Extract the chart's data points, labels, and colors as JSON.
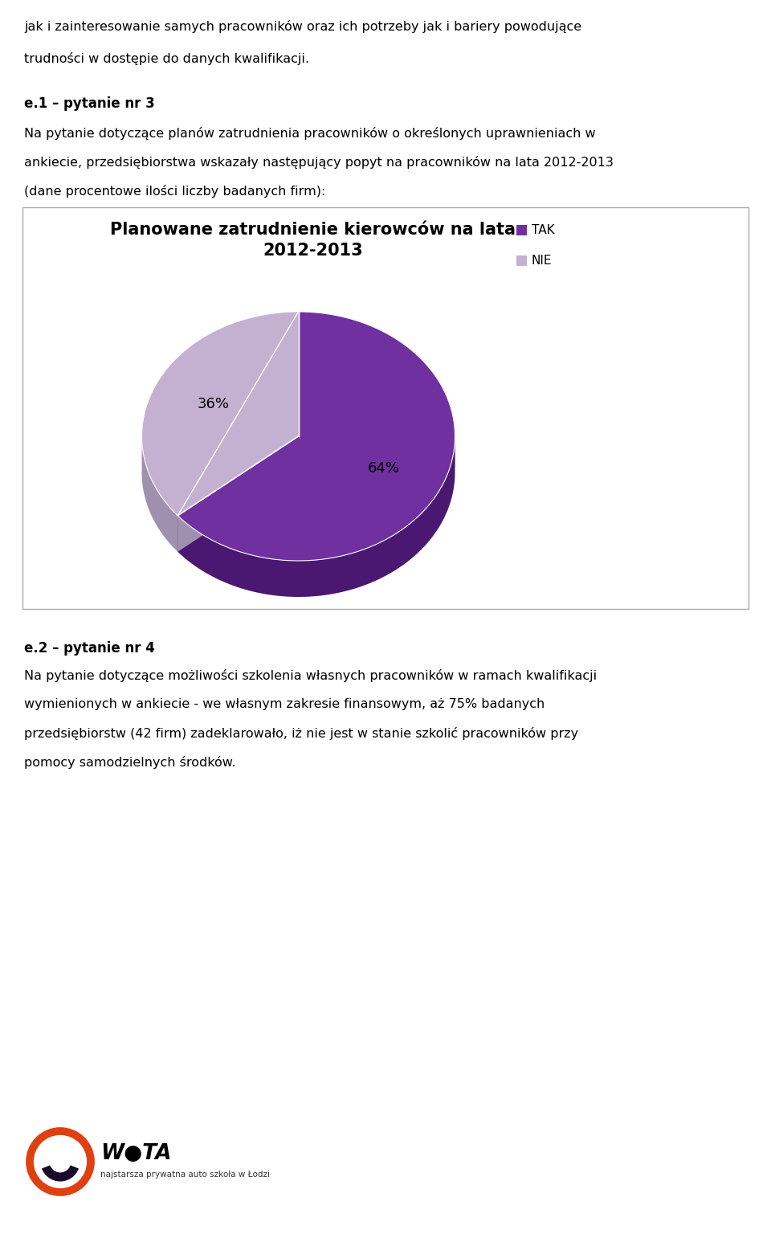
{
  "title_line1": "Planowane zatrudnienie kierowców na lata",
  "title_line2": "2012-2013",
  "slices": [
    64,
    36
  ],
  "labels": [
    "TAK",
    "NIE"
  ],
  "colors_top": [
    "#7030A0",
    "#C4B0D0"
  ],
  "colors_side": [
    "#4A1870",
    "#A090B0"
  ],
  "pct_labels": [
    "64%",
    "36%"
  ],
  "legend_colors": [
    "#7030A0",
    "#C4B0D0"
  ],
  "text_top1": "jak i zainteresowanie samych pracowników oraz ich potrzeby jak i bariery powodujące",
  "text_top2": "trudności w dostępie do danych kwalifikacji.",
  "section_label": "e.1 – pytanie nr 3",
  "body_text1": "Na pytanie dotyczące planów zatrudnienia pracowników o określonych uprawnieniach w",
  "body_text2": "ankiecie, przedsiębiorstwa wskazały następujący popyt na pracowników na lata 2012-2013",
  "body_text3": "(dane procentowe ilości liczby badanych firm):",
  "section_label2": "e.2 – pytanie nr 4",
  "body_text4": "Na pytanie dotyczące możliwości szkolenia własnych pracowników w ramach kwalifikacji",
  "body_text5": "wymienionych w ankiecie - we własnym zakresie finansowym, aż 75% badanych",
  "body_text6": "przedsiębiorstw (42 firm) zadeklarowało, iż nie jest w stanie szkolić pracowników przy",
  "body_text7": "pomocy samodzielnych środków.",
  "bg_color": "#FFFFFF",
  "title_fontsize": 15,
  "body_fontsize": 11.5,
  "section_fontsize": 12
}
